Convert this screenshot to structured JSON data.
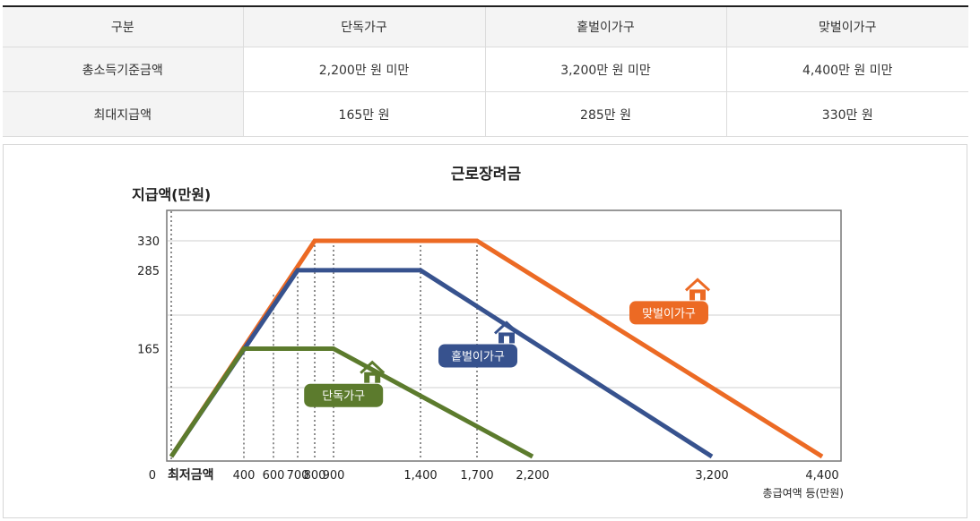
{
  "table": {
    "headers": [
      "구분",
      "단독가구",
      "홑벌이가구",
      "맞벌이가구"
    ],
    "rows": [
      [
        "총소득기준금액",
        "2,200만 원 미만",
        "3,200만 원 미만",
        "4,400만 원 미만"
      ],
      [
        "최대지급액",
        "165만 원",
        "285만 원",
        "330만 원"
      ]
    ]
  },
  "chart_data": {
    "type": "line",
    "title": "근로장려금",
    "ylabel": "지급액(만원)",
    "xlabel": "총급여액 등(만원)",
    "x_origin_label": "최저금액",
    "y_origin_label": "0",
    "yticks": [
      165,
      285,
      330
    ],
    "ytick_labels": [
      "165",
      "285",
      "330"
    ],
    "xticks": [
      400,
      600,
      700,
      800,
      900,
      1400,
      1700,
      2200,
      3200,
      4400
    ],
    "xtick_labels": [
      "400",
      "600",
      "700",
      "800",
      "900",
      "1,400",
      "1,700",
      "2,200",
      "3,200",
      "4,400"
    ],
    "grid": true,
    "series": [
      {
        "name": "맞벌이가구",
        "color": "#ec6a24",
        "icon": "house-icon",
        "x": [
          0,
          800,
          1700,
          4400
        ],
        "y": [
          0,
          330,
          330,
          0
        ]
      },
      {
        "name": "홑벌이가구",
        "color": "#37528e",
        "icon": "house-icon",
        "x": [
          0,
          700,
          1400,
          3200
        ],
        "y": [
          0,
          285,
          285,
          0
        ]
      },
      {
        "name": "단독가구",
        "color": "#5c7b2d",
        "icon": "house-icon",
        "x": [
          0,
          400,
          900,
          2200
        ],
        "y": [
          0,
          165,
          165,
          0
        ]
      }
    ]
  }
}
